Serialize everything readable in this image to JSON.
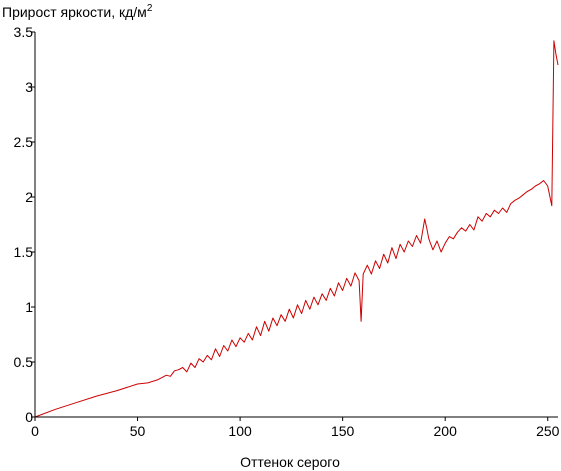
{
  "chart_data": {
    "type": "line",
    "title": "",
    "ylabel": "Прирост яркости, кд/м",
    "ylabel_sup": "2",
    "xlabel": "Оттенок серого",
    "xlim": [
      0,
      255
    ],
    "ylim": [
      0,
      3.5
    ],
    "xticks": [
      0,
      50,
      100,
      150,
      200,
      250
    ],
    "xtick_labels": [
      "0",
      "50",
      "100",
      "150",
      "200",
      "250"
    ],
    "yticks": [
      0,
      0.5,
      1,
      1.5,
      2,
      2.5,
      3,
      3.5
    ],
    "ytick_labels": [
      "0",
      "0.5",
      "1",
      "1.5",
      "2",
      "2.5",
      "3",
      "3.5"
    ],
    "grid": false,
    "line_color": "#cc0000",
    "series": [
      {
        "x": [
          0,
          10,
          20,
          30,
          40,
          50,
          55,
          60,
          62,
          64,
          66,
          68,
          70,
          72,
          74,
          76,
          78,
          80,
          82,
          84,
          86,
          88,
          90,
          92,
          94,
          96,
          98,
          100,
          102,
          104,
          106,
          108,
          110,
          112,
          114,
          116,
          118,
          120,
          122,
          124,
          126,
          128,
          130,
          132,
          134,
          136,
          138,
          140,
          142,
          144,
          146,
          148,
          150,
          152,
          154,
          156,
          158,
          159,
          160,
          162,
          164,
          166,
          168,
          170,
          172,
          174,
          176,
          178,
          180,
          182,
          184,
          186,
          188,
          190,
          191,
          192,
          194,
          196,
          198,
          200,
          202,
          204,
          206,
          208,
          210,
          212,
          214,
          216,
          218,
          220,
          222,
          224,
          226,
          228,
          230,
          232,
          234,
          236,
          238,
          240,
          242,
          244,
          246,
          248,
          250,
          252,
          253,
          254,
          255
        ],
        "values": [
          0,
          0.07,
          0.13,
          0.19,
          0.24,
          0.3,
          0.31,
          0.34,
          0.36,
          0.38,
          0.37,
          0.42,
          0.43,
          0.45,
          0.41,
          0.49,
          0.45,
          0.53,
          0.5,
          0.56,
          0.52,
          0.62,
          0.55,
          0.65,
          0.6,
          0.7,
          0.64,
          0.72,
          0.68,
          0.76,
          0.7,
          0.82,
          0.74,
          0.87,
          0.78,
          0.9,
          0.83,
          0.93,
          0.87,
          0.98,
          0.9,
          1.02,
          0.94,
          1.06,
          0.98,
          1.09,
          1.02,
          1.12,
          1.06,
          1.17,
          1.1,
          1.22,
          1.15,
          1.26,
          1.19,
          1.31,
          1.24,
          0.87,
          1.3,
          1.38,
          1.3,
          1.42,
          1.35,
          1.48,
          1.4,
          1.54,
          1.44,
          1.57,
          1.5,
          1.6,
          1.55,
          1.65,
          1.58,
          1.8,
          1.72,
          1.62,
          1.52,
          1.6,
          1.5,
          1.58,
          1.64,
          1.62,
          1.68,
          1.72,
          1.69,
          1.75,
          1.7,
          1.82,
          1.78,
          1.85,
          1.82,
          1.88,
          1.85,
          1.9,
          1.86,
          1.94,
          1.97,
          1.99,
          2.02,
          2.05,
          2.07,
          2.1,
          2.12,
          2.15,
          2.1,
          1.92,
          3.42,
          3.3,
          3.2
        ]
      }
    ]
  }
}
